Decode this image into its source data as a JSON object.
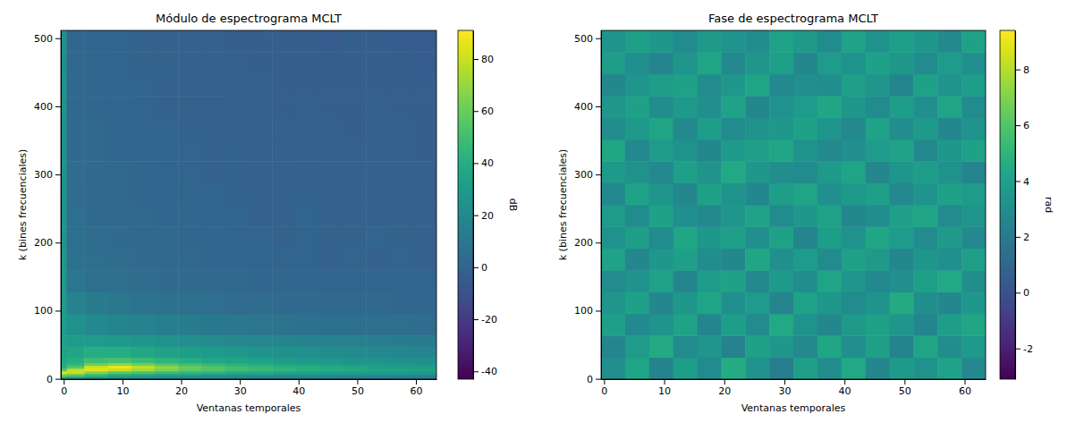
{
  "chart_data": [
    {
      "type": "heatmap",
      "title": "Módulo de espectrograma MCLT",
      "x_label": "Ventanas temporales",
      "y_label": "k (bines frecuenciales)",
      "xlim": [
        -0.5,
        63.5
      ],
      "ylim": [
        -0.5,
        511.5
      ],
      "xticks": [
        0,
        10,
        20,
        30,
        40,
        50,
        60
      ],
      "yticks": [
        0,
        100,
        200,
        300,
        400,
        500
      ],
      "x_edges": [
        -0.5,
        0.5,
        3.5,
        7.5,
        11.5,
        15.5,
        19.5,
        23.5,
        27.5,
        31.5,
        35.5,
        39.5,
        43.5,
        47.5,
        51.5,
        55.5,
        59.5,
        63.5
      ],
      "y_edges": [
        -0.5,
        3.5,
        7.5,
        11.5,
        15.5,
        19.5,
        23.5,
        31.5,
        47.5,
        63.5,
        95.5,
        127.5,
        159.5,
        191.5,
        223.5,
        255.5,
        287.5,
        319.5,
        351.5,
        383.5,
        415.5,
        447.5,
        479.5,
        511.5
      ],
      "cells": [
        [
          35,
          30,
          26,
          22,
          20,
          18,
          17,
          16,
          15,
          14,
          13,
          12,
          12,
          11,
          11,
          10,
          10
        ],
        [
          60,
          55,
          45,
          38,
          35,
          32,
          30,
          28,
          27,
          26,
          25,
          24,
          23,
          22,
          22,
          21,
          20
        ],
        [
          85,
          80,
          65,
          56,
          52,
          48,
          45,
          43,
          40,
          38,
          36,
          34,
          33,
          32,
          31,
          30,
          29
        ],
        [
          55,
          78,
          85,
          80,
          72,
          64,
          58,
          54,
          50,
          47,
          44,
          42,
          40,
          38,
          36,
          35,
          34
        ],
        [
          40,
          55,
          82,
          88,
          78,
          68,
          60,
          54,
          50,
          46,
          43,
          40,
          38,
          36,
          34,
          32,
          31
        ],
        [
          38,
          45,
          62,
          68,
          62,
          55,
          50,
          46,
          42,
          39,
          36,
          34,
          32,
          30,
          29,
          28,
          27
        ],
        [
          36,
          40,
          50,
          52,
          48,
          44,
          40,
          37,
          35,
          33,
          31,
          29,
          28,
          26,
          25,
          24,
          23
        ],
        [
          34,
          36,
          40,
          40,
          37,
          34,
          32,
          30,
          28,
          26,
          24,
          23,
          22,
          21,
          20,
          19,
          18
        ],
        [
          32,
          30,
          30,
          29,
          27,
          25,
          23,
          21,
          20,
          19,
          18,
          17,
          16,
          15,
          14,
          13,
          12
        ],
        [
          30,
          24,
          20,
          18,
          16,
          14,
          12,
          11,
          10,
          9,
          8,
          7,
          6,
          6,
          5,
          5,
          4
        ],
        [
          30,
          16,
          12,
          10,
          8,
          7,
          6,
          5,
          4,
          4,
          3,
          3,
          2,
          2,
          2,
          1,
          1
        ],
        [
          28,
          9,
          6,
          5,
          4,
          3,
          3,
          2,
          2,
          1,
          1,
          1,
          0,
          0,
          0,
          0,
          0
        ],
        [
          28,
          7,
          5,
          4,
          3,
          2,
          2,
          1,
          1,
          0,
          0,
          0,
          -1,
          0,
          -1,
          0,
          -1
        ],
        [
          27,
          6,
          4,
          3,
          2,
          2,
          1,
          1,
          0,
          0,
          -1,
          0,
          -1,
          -1,
          0,
          -1,
          -1
        ],
        [
          27,
          5,
          3,
          2,
          2,
          1,
          1,
          0,
          0,
          -1,
          -1,
          0,
          -1,
          -1,
          -1,
          -1,
          -2
        ],
        [
          26,
          4,
          3,
          2,
          1,
          1,
          0,
          0,
          -1,
          -1,
          -1,
          -1,
          -2,
          -1,
          -1,
          -2,
          -2
        ],
        [
          26,
          4,
          2,
          2,
          1,
          0,
          0,
          -1,
          -1,
          -1,
          -2,
          -1,
          -2,
          -2,
          -1,
          -2,
          -2
        ],
        [
          25,
          3,
          2,
          1,
          1,
          0,
          0,
          -1,
          -1,
          -2,
          -2,
          -1,
          -2,
          -2,
          -2,
          -2,
          -3
        ],
        [
          25,
          3,
          2,
          1,
          0,
          0,
          -1,
          -1,
          -2,
          -2,
          -2,
          -2,
          -2,
          -3,
          -2,
          -2,
          -3
        ],
        [
          24,
          2,
          1,
          1,
          0,
          -1,
          -1,
          -1,
          -2,
          -2,
          -3,
          -2,
          -3,
          -3,
          -2,
          -3,
          -3
        ],
        [
          24,
          2,
          1,
          0,
          0,
          -1,
          -1,
          -2,
          -2,
          -2,
          -3,
          -3,
          -3,
          -3,
          -3,
          -3,
          -3
        ],
        [
          23,
          2,
          1,
          0,
          -1,
          -1,
          -2,
          -2,
          -2,
          -3,
          -3,
          -3,
          -3,
          -3,
          -3,
          -3,
          -4
        ],
        [
          23,
          1,
          0,
          0,
          -1,
          -1,
          -2,
          -2,
          -3,
          -3,
          -3,
          -3,
          -4,
          -3,
          -3,
          -4,
          -4
        ]
      ],
      "colorbar": {
        "label": "dB",
        "range": [
          -43,
          91
        ],
        "ticks": [
          -40,
          -20,
          0,
          20,
          40,
          60,
          80
        ]
      }
    },
    {
      "type": "heatmap",
      "title": "Fase de espectrograma MCLT",
      "x_label": "Ventanas temporales",
      "y_label": "k (bines frecuenciales)",
      "xlim": [
        -0.5,
        63.5
      ],
      "ylim": [
        -0.5,
        511.5
      ],
      "xticks": [
        0,
        10,
        20,
        30,
        40,
        50,
        60
      ],
      "yticks": [
        0,
        100,
        200,
        300,
        400,
        500
      ],
      "x_edges": [
        -0.5,
        3.5,
        7.5,
        11.5,
        15.5,
        19.5,
        23.5,
        27.5,
        31.5,
        35.5,
        39.5,
        43.5,
        47.5,
        51.5,
        55.5,
        59.5,
        63.5
      ],
      "y_edges": [
        -0.5,
        31.5,
        63.5,
        95.5,
        127.5,
        159.5,
        191.5,
        223.5,
        255.5,
        287.5,
        319.5,
        351.5,
        383.5,
        415.5,
        447.5,
        479.5,
        511.5
      ],
      "cells": [
        [
          3.1,
          4.2,
          2.5,
          3.8,
          2.9,
          4.6,
          3.3,
          2.2,
          3.9,
          3.0,
          4.4,
          2.7,
          3.6,
          3.2,
          4.1,
          2.8
        ],
        [
          2.6,
          3.7,
          4.5,
          2.9,
          3.4,
          2.4,
          4.0,
          3.5,
          2.8,
          4.3,
          3.1,
          3.9,
          2.5,
          4.2,
          3.0,
          3.6
        ],
        [
          3.9,
          2.8,
          3.3,
          4.1,
          2.6,
          3.8,
          2.9,
          4.4,
          3.2,
          2.7,
          3.6,
          4.0,
          3.4,
          2.6,
          3.8,
          4.3
        ],
        [
          3.4,
          4.0,
          2.7,
          3.5,
          4.2,
          3.1,
          3.7,
          2.6,
          4.1,
          3.5,
          2.9,
          3.3,
          4.5,
          3.0,
          2.7,
          3.5
        ],
        [
          2.9,
          3.3,
          4.1,
          2.6,
          3.7,
          4.0,
          2.8,
          3.6,
          3.0,
          4.2,
          3.4,
          2.8,
          3.1,
          3.9,
          4.4,
          3.0
        ],
        [
          4.1,
          2.7,
          3.5,
          3.9,
          3.0,
          2.7,
          4.3,
          3.1,
          3.7,
          2.9,
          4.0,
          3.6,
          2.7,
          3.4,
          3.1,
          3.9
        ],
        [
          3.2,
          3.8,
          2.9,
          4.3,
          3.5,
          3.9,
          3.1,
          4.0,
          2.6,
          3.8,
          3.2,
          4.3,
          3.7,
          2.9,
          3.6,
          2.8
        ],
        [
          3.7,
          2.9,
          4.0,
          3.1,
          2.8,
          3.4,
          4.1,
          2.9,
          3.5,
          4.1,
          2.7,
          3.0,
          3.9,
          4.2,
          2.9,
          3.4
        ],
        [
          2.8,
          4.1,
          3.4,
          2.7,
          4.0,
          3.2,
          2.7,
          3.8,
          4.2,
          3.1,
          3.6,
          3.9,
          2.8,
          3.3,
          4.0,
          3.7
        ],
        [
          3.6,
          3.2,
          2.8,
          3.9,
          3.3,
          4.4,
          3.5,
          3.0,
          2.9,
          3.6,
          4.2,
          2.7,
          3.4,
          3.8,
          3.2,
          2.6
        ],
        [
          4.3,
          2.8,
          3.7,
          3.2,
          2.7,
          3.6,
          3.9,
          4.3,
          3.3,
          2.8,
          3.1,
          3.7,
          4.1,
          2.8,
          3.5,
          4.0
        ],
        [
          3.0,
          3.6,
          4.2,
          2.8,
          3.8,
          2.9,
          3.2,
          3.5,
          4.0,
          3.4,
          2.8,
          4.1,
          3.0,
          3.6,
          2.7,
          3.3
        ],
        [
          3.5,
          4.0,
          3.0,
          3.6,
          3.1,
          4.1,
          2.7,
          3.3,
          3.7,
          4.3,
          3.5,
          2.9,
          3.8,
          3.1,
          4.2,
          2.9
        ],
        [
          2.7,
          3.4,
          3.8,
          4.0,
          2.9,
          3.5,
          4.2,
          2.8,
          3.1,
          3.0,
          3.9,
          3.4,
          2.6,
          4.0,
          3.3,
          3.8
        ],
        [
          3.8,
          3.1,
          2.6,
          3.4,
          4.2,
          2.8,
          3.4,
          3.9,
          2.7,
          3.7,
          3.2,
          4.0,
          3.5,
          2.9,
          3.7,
          3.1
        ],
        [
          3.3,
          3.9,
          3.5,
          2.9,
          3.6,
          3.3,
          3.0,
          4.1,
          3.6,
          2.9,
          4.1,
          3.2,
          3.9,
          3.5,
          2.8,
          4.0
        ]
      ],
      "colorbar": {
        "label": "rad",
        "range": [
          -3.1,
          9.4
        ],
        "ticks": [
          -2,
          0,
          2,
          4,
          6,
          8
        ]
      }
    }
  ]
}
